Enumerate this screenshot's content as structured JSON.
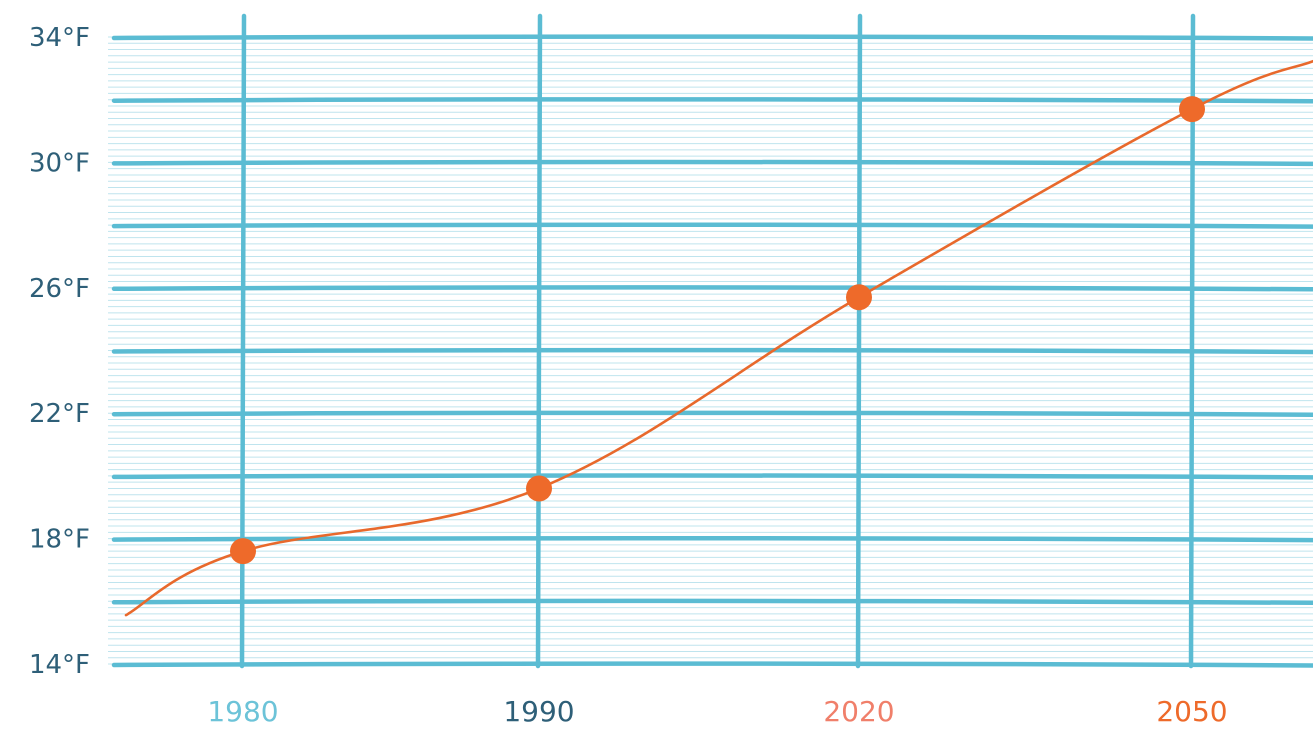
{
  "chart_data": {
    "type": "line",
    "title": "",
    "xlabel": "",
    "ylabel": "",
    "y_tick_labels": [
      "34°F",
      "30°F",
      "26°F",
      "22°F",
      "18°F",
      "14°F"
    ],
    "y_tick_values": [
      34,
      30,
      26,
      22,
      18,
      14
    ],
    "x_tick_labels": [
      "1980",
      "1990",
      "2020",
      "2050"
    ],
    "ylim": [
      14,
      34
    ],
    "grid": true,
    "series": [
      {
        "x": [
          "1980",
          "1990",
          "2020",
          "2050"
        ],
        "y": [
          17.6,
          19.6,
          25.7,
          31.7
        ]
      }
    ],
    "line_extends_beyond_points": true,
    "colors": {
      "grid_major": "#5bbcd3",
      "grid_minor": "#bfe4ee",
      "line": "#e8692c",
      "marker": "#ee6a2a",
      "y_tick_text": "#2e5f78",
      "x_tick_colors": [
        "#6cc3d8",
        "#2e5f78",
        "#f07f6a",
        "#ee6a2a"
      ]
    }
  }
}
